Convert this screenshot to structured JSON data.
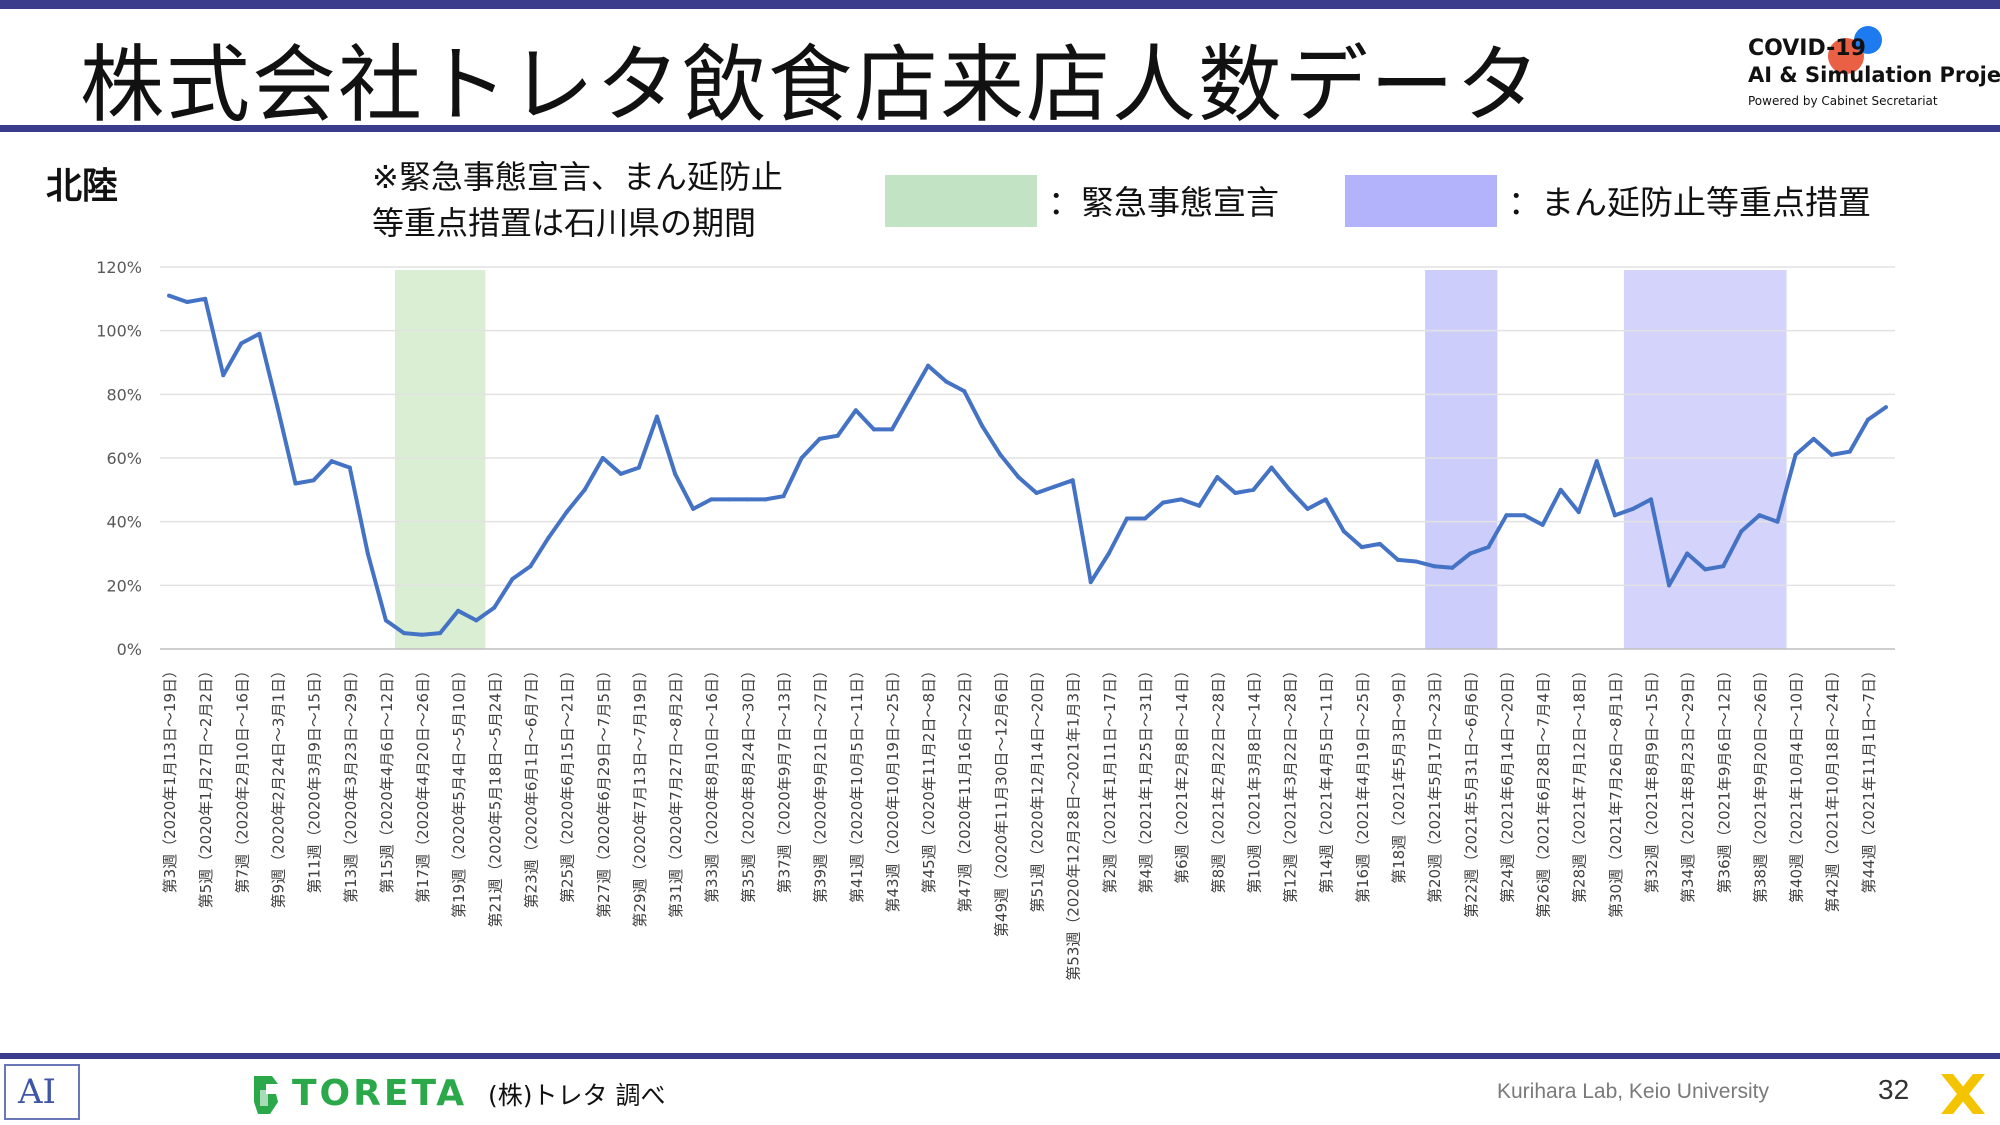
{
  "header": {
    "title": "株式会社トレタ飲食店来店人数データ"
  },
  "covid_logo": {
    "line1": "COVID-19",
    "line2": "AI & Simulation Project",
    "line3": "Powered by Cabinet Secretariat"
  },
  "region": "北陸",
  "note": {
    "line1": "※緊急事態宣言、まん延防止",
    "line2": "等重点措置は石川県の期間"
  },
  "legend": {
    "emergency_label": "：緊急事態宣言",
    "emergency_color": "#c2e3c4",
    "priority_label": "：まん延防止等重点措置",
    "priority_color": "#b3b3fb"
  },
  "footer": {
    "logo_text": "TORETA",
    "source": "(株)トレタ 調べ",
    "credit": "Kurihara Lab, Keio University",
    "page": "32"
  },
  "chart_data": {
    "type": "line",
    "line_color": "#4472c4",
    "ylim": [
      0,
      1.2
    ],
    "yticks": [
      0,
      0.2,
      0.4,
      0.6,
      0.8,
      1.0,
      1.2
    ],
    "ytick_labels": [
      "0%",
      "20%",
      "40%",
      "60%",
      "80%",
      "100%",
      "120%"
    ],
    "grid": true,
    "x_labels": [
      "第3週（2020年1月13日～19日）",
      "第5週（2020年1月27日～2月2日）",
      "第7週（2020年2月10日～16日）",
      "第9週（2020年2月24日～3月1日）",
      "第11週（2020年3月9日～15日）",
      "第13週（2020年3月23日～29日）",
      "第15週（2020年4月6日～12日）",
      "第17週（2020年4月20日～26日）",
      "第19週（2020年5月4日～5月10日）",
      "第21週（2020年5月18日～5月24日）",
      "第23週（2020年6月1日～6月7日）",
      "第25週（2020年6月15日～21日）",
      "第27週（2020年6月29日～7月5日）",
      "第29週（2020年7月13日～7月19日）",
      "第31週（2020年7月27日～8月2日）",
      "第33週（2020年8月10日～16日）",
      "第35週（2020年8月24日～30日）",
      "第37週（2020年9月7日～13日）",
      "第39週（2020年9月21日～27日）",
      "第41週（2020年10月5日～11日）",
      "第43週（2020年10月19日～25日）",
      "第45週（2020年11月2日～8日）",
      "第47週（2020年11月16日～22日）",
      "第49週（2020年11月30日～12月6日）",
      "第51週（2020年12月14日～20日）",
      "第53週（2020年12月28日～2021年1月3日）",
      "第2週（2021年1月11日～17日）",
      "第4週（2021年1月25日～31日）",
      "第6週（2021年2月8日～14日）",
      "第8週（2021年2月22日～28日）",
      "第10週（2021年3月8日～14日）",
      "第12週（2021年3月22日～28日）",
      "第14週（2021年4月5日～11日）",
      "第16週（2021年4月19日～25日）",
      "第18週（2021年5月3日～9日）",
      "第20週（2021年5月17日～23日）",
      "第22週（2021年5月31日～6月6日）",
      "第24週（2021年6月14日～20日）",
      "第26週（2021年6月28日～7月4日）",
      "第28週（2021年7月12日～18日）",
      "第30週（2021年7月26日～8月1日）",
      "第32週（2021年8月9日～15日）",
      "第34週（2021年8月23日～29日）",
      "第36週（2021年9月6日～12日）",
      "第38週（2021年9月20日～26日）",
      "第40週（2021年10月4日～10日）",
      "第42週（2021年10月18日～24日）",
      "第44週（2021年11月1日～7日）"
    ],
    "values": [
      1.11,
      1.09,
      1.1,
      0.86,
      0.96,
      0.99,
      0.76,
      0.52,
      0.53,
      0.59,
      0.57,
      0.3,
      0.09,
      0.05,
      0.045,
      0.05,
      0.12,
      0.09,
      0.13,
      0.22,
      0.26,
      0.35,
      0.43,
      0.5,
      0.6,
      0.55,
      0.57,
      0.73,
      0.55,
      0.44,
      0.47,
      0.47,
      0.47,
      0.47,
      0.48,
      0.6,
      0.66,
      0.67,
      0.75,
      0.69,
      0.69,
      0.79,
      0.89,
      0.84,
      0.81,
      0.7,
      0.61,
      0.54,
      0.49,
      0.51,
      0.53,
      0.21,
      0.3,
      0.41,
      0.41,
      0.46,
      0.47,
      0.45,
      0.54,
      0.49,
      0.5,
      0.57,
      0.5,
      0.44,
      0.47,
      0.37,
      0.32,
      0.33,
      0.28,
      0.275,
      0.26,
      0.255,
      0.3,
      0.32,
      0.42,
      0.42,
      0.39,
      0.5,
      0.43,
      0.59,
      0.42,
      0.44,
      0.47,
      0.2,
      0.3,
      0.25,
      0.26,
      0.37,
      0.42,
      0.4,
      0.61,
      0.66,
      0.61,
      0.62,
      0.72,
      0.76
    ],
    "bands": [
      {
        "type": "emergency",
        "start": 12.5,
        "end": 17.5,
        "color": "#d9eed3"
      },
      {
        "type": "priority",
        "start": 69.5,
        "end": 73.5,
        "color": "#cdcdfb"
      },
      {
        "type": "priority",
        "start": 80.5,
        "end": 89.5,
        "color": "#d3d3fb"
      }
    ]
  }
}
